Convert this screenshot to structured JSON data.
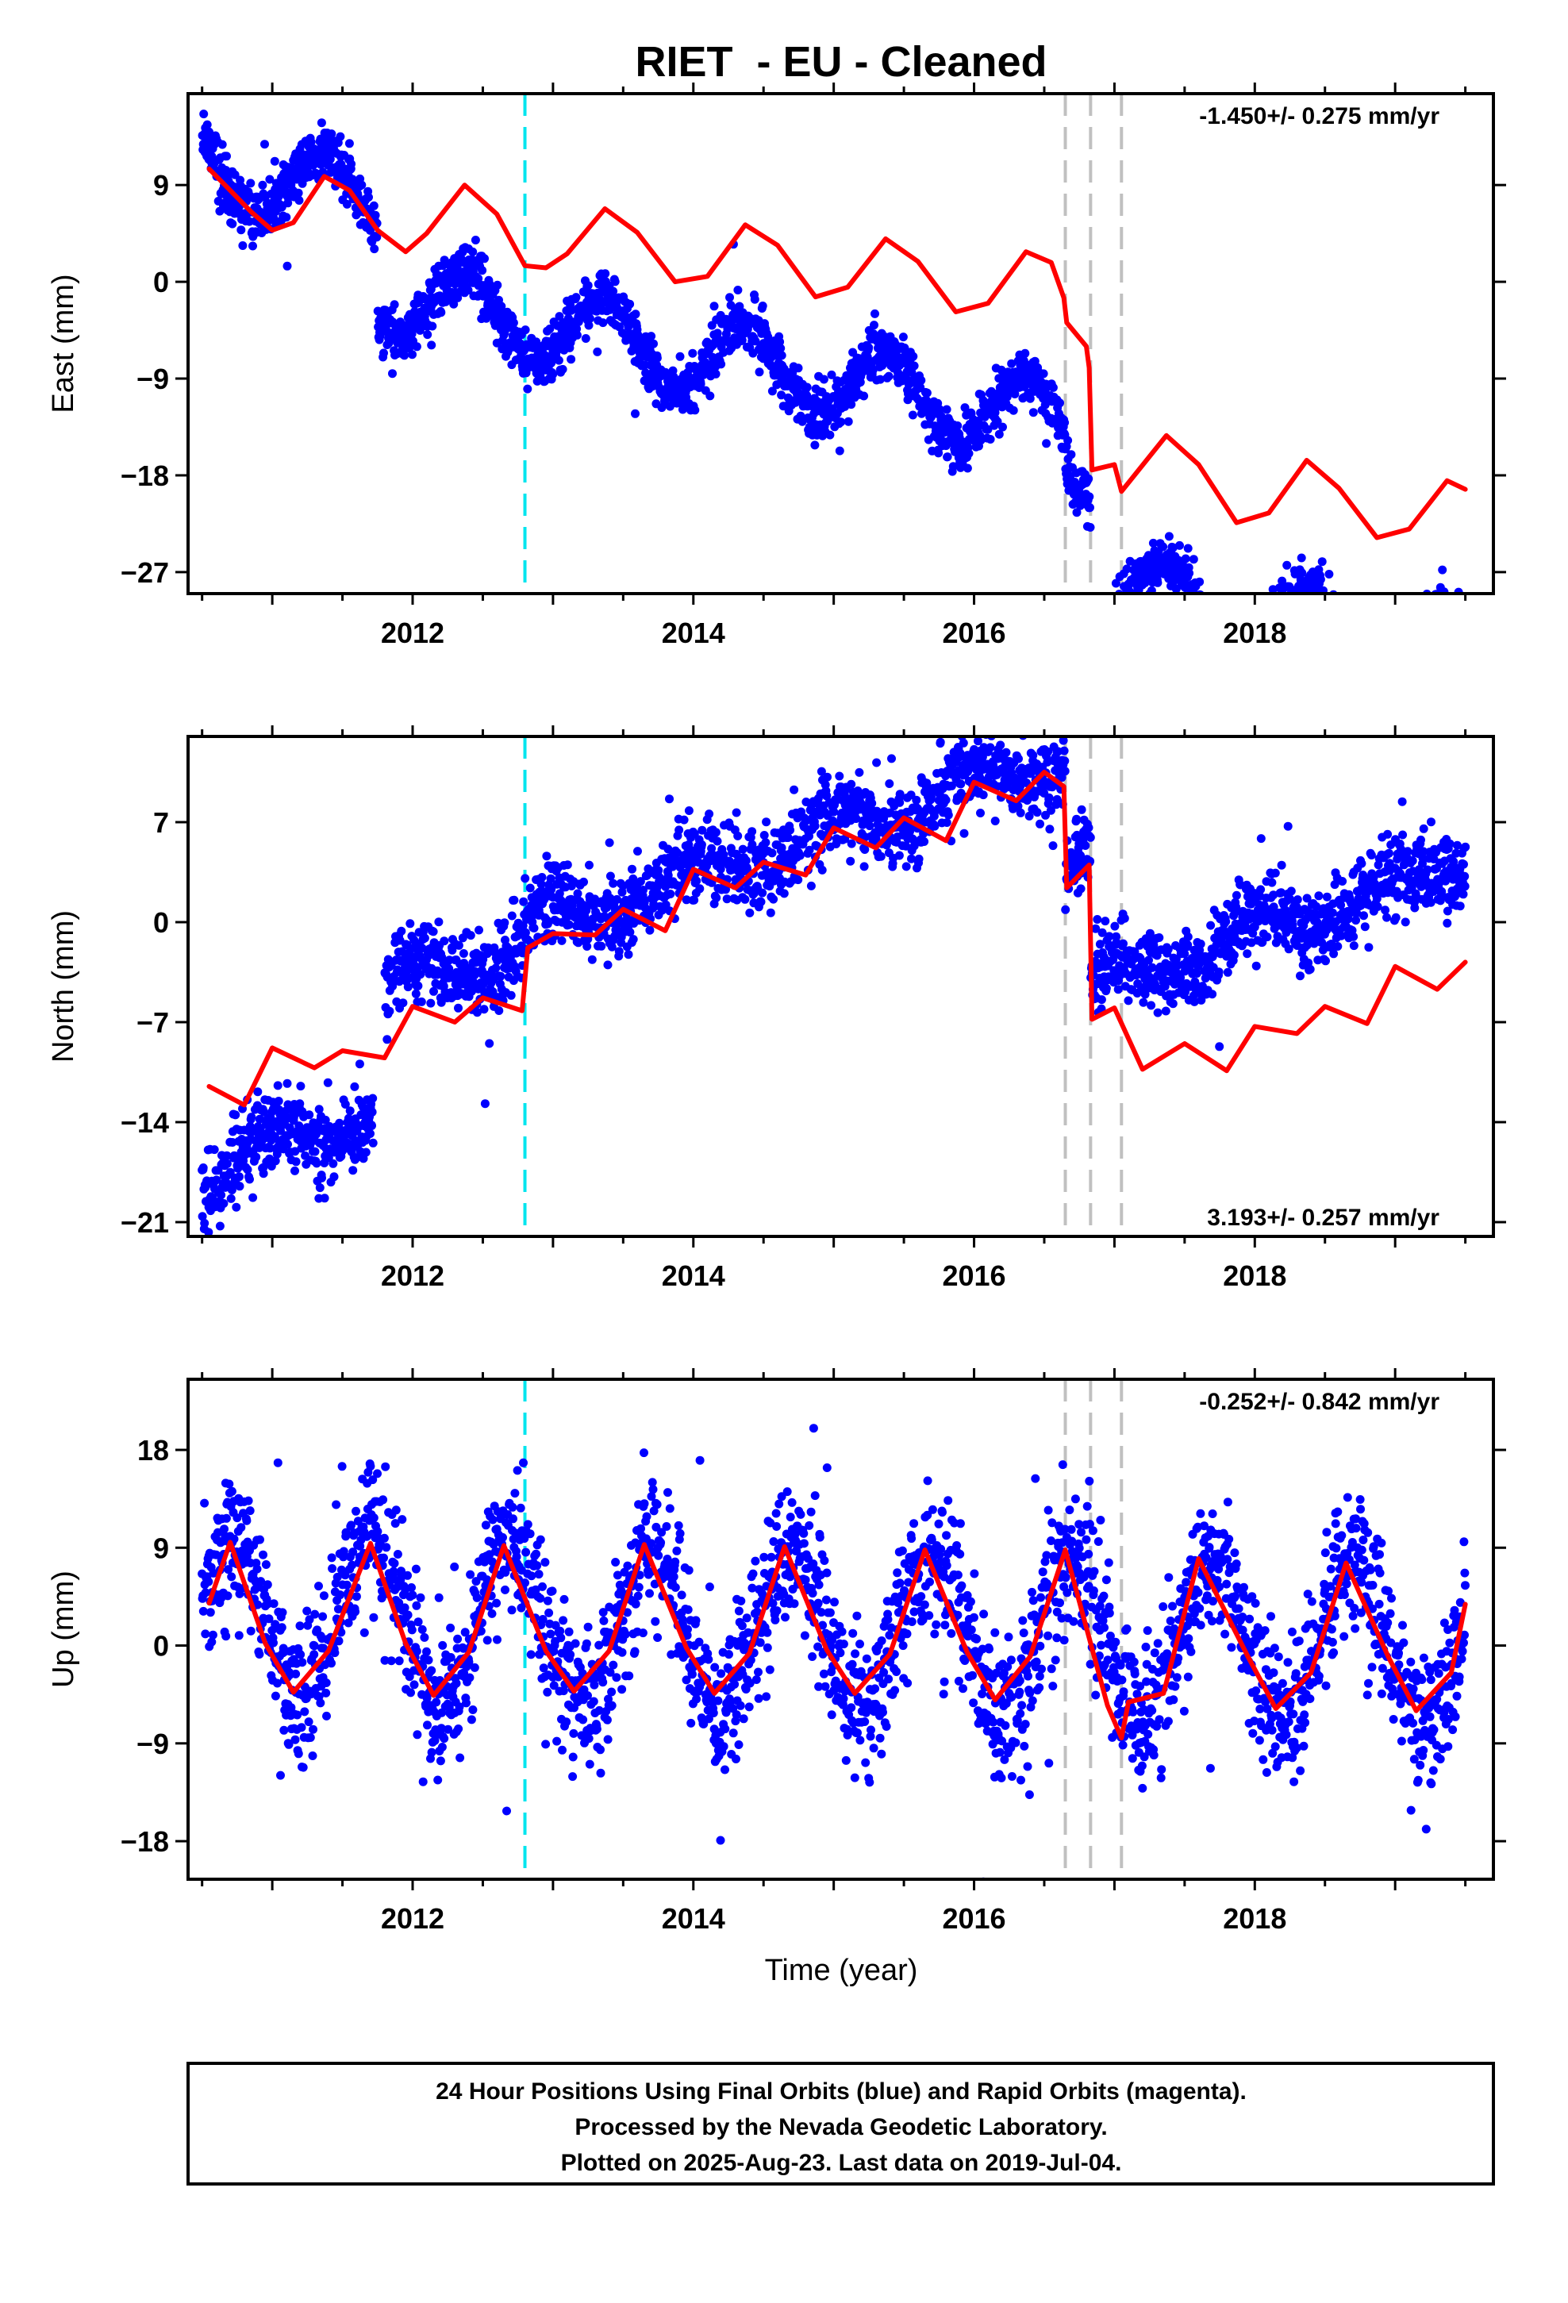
{
  "figure": {
    "title": "RIET  - EU - Cleaned",
    "xlabel": "Time (year)",
    "footer": [
      "24 Hour Positions Using Final Orbits (blue) and Rapid Orbits (magenta).",
      "Processed by the Nevada Geodetic Laboratory.",
      "Plotted on 2025-Aug-23. Last data on 2019-Jul-04."
    ],
    "colors": {
      "points": "#0000ff",
      "model": "#ff0000",
      "equipment_change": "#00e5ee",
      "other_change": "#c0c0c0",
      "frame": "#000000"
    }
  },
  "chart_data": [
    {
      "type": "scatter",
      "component": "East",
      "ylabel": "East (mm)",
      "xlim": [
        2010.4,
        2019.7
      ],
      "ylim": [
        -29,
        17.5
      ],
      "xticks": [
        2012,
        2014,
        2016,
        2018
      ],
      "yticks": [
        -27,
        -18,
        -9,
        0,
        9
      ],
      "rate": "-1.450+/- 0.275 mm/yr",
      "rate_position": "top-right",
      "equipment_change_lines": [
        2012.8
      ],
      "other_change_lines": [
        2016.65,
        2016.83,
        2017.05
      ],
      "model_params": {
        "t0": 2010.55,
        "v0": 10.5,
        "trend": -2.5,
        "amplitude": 3.6,
        "phase_year": 2011.37,
        "offsets": [
          [
            2011.75,
            -8.5
          ],
          [
            2016.65,
            -3.0
          ],
          [
            2016.83,
            -11.8
          ]
        ]
      },
      "model": {
        "x": [
          2010.55,
          2010.7,
          2010.85,
          2011.0,
          2011.15,
          2011.37,
          2011.55,
          2011.75,
          2011.95,
          2012.1,
          2012.37,
          2012.6,
          2012.8,
          2012.95,
          2013.1,
          2013.37,
          2013.6,
          2013.87,
          2014.1,
          2014.37,
          2014.6,
          2014.87,
          2015.1,
          2015.37,
          2015.6,
          2015.87,
          2016.1,
          2016.37,
          2016.55,
          2016.64,
          2016.66,
          2016.8,
          2016.82,
          2016.84,
          2017.0,
          2017.05,
          2017.37,
          2017.6,
          2017.87,
          2018.1,
          2018.37,
          2018.6,
          2018.87,
          2019.1,
          2019.37,
          2019.5
        ],
        "y": [
          10.5,
          8.5,
          6.5,
          4.8,
          5.5,
          9.8,
          8.5,
          4.8,
          2.8,
          4.5,
          9.0,
          6.3,
          1.5,
          1.3,
          2.6,
          6.8,
          4.6,
          0.0,
          0.5,
          5.3,
          3.4,
          -1.4,
          -0.5,
          4.0,
          1.9,
          -2.8,
          -2.0,
          2.8,
          1.8,
          -1.5,
          -3.8,
          -6.0,
          -8.0,
          -17.5,
          -17.0,
          -19.5,
          -14.3,
          -17.0,
          -22.4,
          -21.5,
          -16.6,
          -19.2,
          -23.8,
          -23.0,
          -18.5,
          -19.3
        ]
      },
      "observations": {
        "n": 3200,
        "noise_mm": 1.3,
        "x_start": 2010.5,
        "x_end": 2019.5,
        "gaps": [
          [
            2016.85,
            2016.95
          ]
        ]
      }
    },
    {
      "type": "scatter",
      "component": "North",
      "ylabel": "North (mm)",
      "xlim": [
        2010.4,
        2019.7
      ],
      "ylim": [
        -22,
        13
      ],
      "xticks": [
        2012,
        2014,
        2016,
        2018
      ],
      "yticks": [
        -21,
        -14,
        -7,
        0,
        7
      ],
      "rate": "3.193+/- 0.257 mm/yr",
      "rate_position": "bottom-right",
      "equipment_change_lines": [
        2012.8
      ],
      "other_change_lines": [
        2016.65,
        2016.83,
        2017.05
      ],
      "model_params": {
        "t0": 2010.55,
        "v0": -12.3,
        "trend": 3.19,
        "amplitude": 1.3,
        "phase_year": 2011.0,
        "offsets": [
          [
            2012.78,
            4.5
          ],
          [
            2016.65,
            -7.2
          ],
          [
            2016.83,
            -9.5
          ]
        ]
      },
      "model": {
        "x": [
          2010.55,
          2010.8,
          2011.0,
          2011.3,
          2011.5,
          2011.8,
          2012.0,
          2012.3,
          2012.5,
          2012.78,
          2012.82,
          2013.0,
          2013.3,
          2013.5,
          2013.8,
          2014.0,
          2014.3,
          2014.5,
          2014.8,
          2015.0,
          2015.3,
          2015.5,
          2015.8,
          2016.0,
          2016.3,
          2016.5,
          2016.64,
          2016.66,
          2016.82,
          2016.84,
          2017.0,
          2017.2,
          2017.5,
          2017.8,
          2018.0,
          2018.3,
          2018.5,
          2018.8,
          2019.0,
          2019.3,
          2019.5
        ],
        "y": [
          -11.5,
          -12.8,
          -8.8,
          -10.2,
          -9.0,
          -9.5,
          -5.9,
          -7.0,
          -5.3,
          -6.2,
          -1.8,
          -0.8,
          -0.9,
          0.9,
          -0.6,
          3.7,
          2.4,
          4.2,
          3.3,
          6.6,
          5.2,
          7.3,
          5.7,
          9.8,
          8.5,
          10.5,
          9.5,
          2.4,
          4.0,
          -6.8,
          -6.0,
          -10.3,
          -8.5,
          -10.4,
          -7.3,
          -7.8,
          -5.9,
          -7.1,
          -3.1,
          -4.7,
          -2.8
        ]
      },
      "observations": {
        "n": 3000,
        "noise_mm": 1.4,
        "x_start": 2010.5,
        "x_end": 2019.5,
        "gaps": [
          [
            2011.72,
            2011.8
          ]
        ],
        "pre_break_offset": [
          [
            2010.5,
            2011.72,
            -5.0
          ],
          [
            2011.8,
            2012.78,
            3.5
          ]
        ]
      }
    },
    {
      "type": "scatter",
      "component": "Up",
      "ylabel": "Up (mm)",
      "xlim": [
        2010.4,
        2019.7
      ],
      "ylim": [
        -21.5,
        24.5
      ],
      "xticks": [
        2012,
        2014,
        2016,
        2018
      ],
      "yticks": [
        -18,
        -9,
        0,
        9,
        18
      ],
      "rate": "-0.252+/- 0.842 mm/yr",
      "rate_position": "top-right",
      "equipment_change_lines": [
        2012.8
      ],
      "other_change_lines": [
        2016.65,
        2016.83,
        2017.05
      ],
      "model_params": {
        "t0": 2010.55,
        "v0": 2.5,
        "trend": -0.25,
        "amplitude": 7.2,
        "phase_year": 2010.7,
        "offsets": [
          [
            2017.05,
            0.0
          ]
        ]
      },
      "model": {
        "x": [
          2010.55,
          2010.7,
          2010.95,
          2011.15,
          2011.4,
          2011.7,
          2011.95,
          2012.15,
          2012.4,
          2012.65,
          2012.95,
          2013.15,
          2013.4,
          2013.65,
          2013.95,
          2014.15,
          2014.4,
          2014.65,
          2014.95,
          2015.15,
          2015.4,
          2015.65,
          2015.95,
          2016.15,
          2016.4,
          2016.65,
          2016.95,
          2017.05,
          2017.1,
          2017.35,
          2017.6,
          2017.95,
          2018.15,
          2018.4,
          2018.65,
          2018.95,
          2019.15,
          2019.4,
          2019.5
        ],
        "y": [
          3.9,
          9.5,
          0.2,
          -4.3,
          -0.5,
          9.4,
          0.2,
          -4.6,
          -0.6,
          9.2,
          -0.5,
          -4.2,
          -0.5,
          9.3,
          -0.2,
          -4.4,
          -0.7,
          9.1,
          -0.4,
          -4.4,
          -0.8,
          8.8,
          -0.6,
          -5.0,
          -1.0,
          8.8,
          -5.5,
          -8.5,
          -5.2,
          -4.4,
          8.0,
          -1.0,
          -5.8,
          -2.5,
          7.6,
          -1.0,
          -6.0,
          -2.5,
          3.8
        ]
      },
      "observations": {
        "n": 2800,
        "noise_mm": 3.3,
        "x_start": 2010.5,
        "x_end": 2019.5,
        "gaps": []
      }
    }
  ]
}
